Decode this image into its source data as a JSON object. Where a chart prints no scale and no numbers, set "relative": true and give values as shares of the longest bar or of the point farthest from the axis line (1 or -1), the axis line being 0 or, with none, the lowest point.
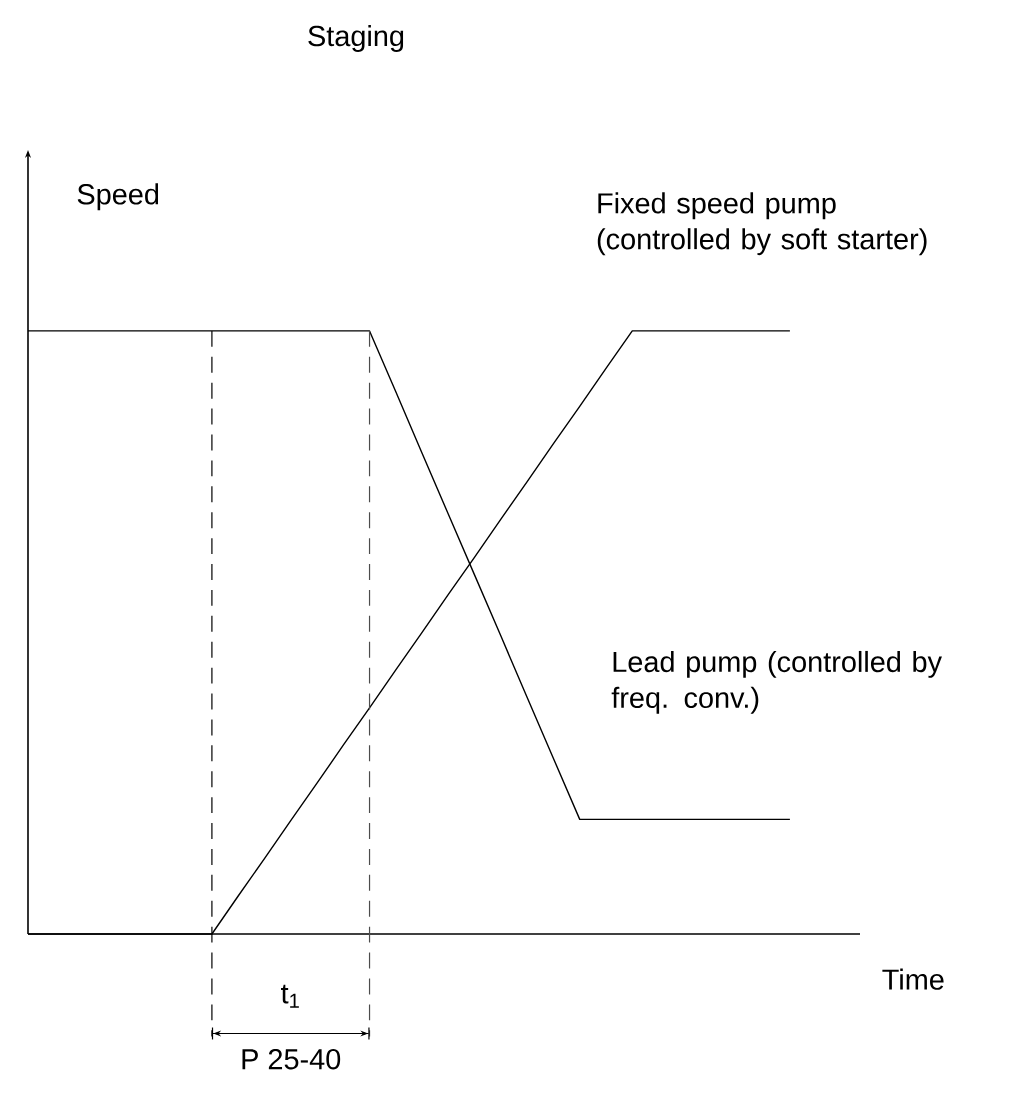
{
  "chart_data": {
    "type": "line",
    "title": "Staging",
    "xlabel": "Time",
    "ylabel": "Speed",
    "relative": true,
    "tick_labels": false,
    "line_style": "solid",
    "marker": "none",
    "categories": [
      null,
      null,
      null,
      null,
      null,
      null,
      null,
      null,
      null,
      null,
      null,
      null,
      null,
      null,
      null,
      null,
      null,
      null,
      null,
      null,
      null,
      null,
      null,
      null,
      null,
      null,
      null,
      null,
      null,
      null
    ],
    "series": [
      {
        "name": "Fixed speed pump (controlled by soft starter)",
        "color": "#000000",
        "values": [
          0,
          0,
          0,
          0,
          0,
          0,
          0,
          0,
          0.063,
          0.125,
          0.188,
          0.25,
          0.313,
          0.375,
          0.438,
          0.5,
          0.563,
          0.625,
          0.688,
          0.75,
          0.813,
          0.875,
          0.938,
          1,
          1,
          1,
          1,
          1,
          1,
          1
        ]
      },
      {
        "name": "Lead pump (controlled by freq. conv.)",
        "color": "#000000",
        "values": [
          1,
          1,
          1,
          1,
          1,
          1,
          1,
          1,
          1,
          1,
          1,
          1,
          1,
          1,
          0.899,
          0.797,
          0.696,
          0.595,
          0.494,
          0.392,
          0.291,
          0.19,
          0.19,
          0.19,
          0.19,
          0.19,
          0.19,
          0.19,
          0.19,
          0.19
        ]
      }
    ],
    "annotations": [
      "t$_{1}$",
      "P 25-40"
    ]
  }
}
